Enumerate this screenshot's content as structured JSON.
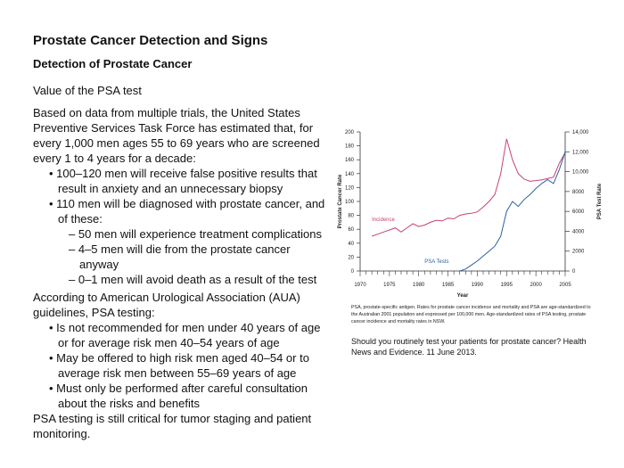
{
  "page": {
    "title": "Prostate Cancer Detection and Signs",
    "subtitle": "Detection of Prostate Cancer",
    "heading": "Value of the PSA test",
    "para1": "Based on data from multiple trials, the United States Preventive Services Task Force has estimated that, for every 1,000 men ages 55 to 69 years who are screened every 1 to 4 years for a decade:",
    "bullets1": [
      "100–120 men will receive false positive results that result in anxiety and an unnecessary biopsy",
      "110 men will be diagnosed with prostate cancer, and of these:"
    ],
    "subbullets": [
      "50 men will experience treatment complications",
      "4–5 men will die from the prostate cancer anyway",
      "0–1 men will avoid death as a result of the test"
    ],
    "para2": "According to American Urological Association (AUA) guidelines, PSA testing:",
    "bullets2": [
      "Is not recommended for men under 40 years of age or for average risk men 40–54 years of age",
      "May be offered to high risk men aged 40–54 or to average risk men between 55–69 years of age",
      "Must only be performed after careful consultation about the risks and benefits"
    ],
    "para3": "PSA testing is still critical for tumor staging and patient monitoring.",
    "caption": "PSA, prostate-specific antigen. Rates for prostate cancer incidence and mortality and PSA are age-standardized to the Australian 2001 population and expressed per 100,000 men. Age-standardized rates of PSA testing, prostate cancer incidence and mortality rates in NSW.",
    "reference": "Should you routinely test your patients for prostate cancer? Health News and Evidence. 11 June 2013."
  },
  "chart_data": {
    "type": "line",
    "xlabel": "Year",
    "ylabel_left": "Prostate Cancer Rate",
    "ylabel_right": "PSA Test Rate",
    "xlim": [
      1970,
      2005
    ],
    "ylim_left": [
      0,
      200
    ],
    "ylim_right": [
      0,
      14000
    ],
    "xticks": [
      "1970",
      "1975",
      "1980",
      "1985",
      "1990",
      "1995",
      "2000",
      "2005"
    ],
    "yticks_left": [
      "0",
      "20",
      "40",
      "60",
      "80",
      "100",
      "120",
      "140",
      "160",
      "180",
      "200"
    ],
    "yticks_right": [
      "0",
      "2000",
      "4000",
      "6000",
      "8000",
      "10,000",
      "12,000",
      "14,000"
    ],
    "series": [
      {
        "name": "Incidence",
        "axis": "left",
        "color": "#c8407a",
        "x": [
          1972,
          1973,
          1974,
          1975,
          1976,
          1977,
          1978,
          1979,
          1980,
          1981,
          1982,
          1983,
          1984,
          1985,
          1986,
          1987,
          1988,
          1989,
          1990,
          1991,
          1992,
          1993,
          1994,
          1995,
          1996,
          1997,
          1998,
          1999,
          2000,
          2001,
          2002,
          2003,
          2004,
          2005
        ],
        "y": [
          50,
          53,
          56,
          59,
          62,
          56,
          62,
          68,
          64,
          66,
          70,
          73,
          72,
          76,
          75,
          80,
          82,
          83,
          85,
          92,
          100,
          110,
          140,
          190,
          160,
          140,
          132,
          129,
          130,
          131,
          133,
          135,
          155,
          170
        ]
      },
      {
        "name": "PSA Tests",
        "axis": "right",
        "color": "#2d5fa3",
        "x": [
          1987,
          1988,
          1989,
          1990,
          1991,
          1992,
          1993,
          1994,
          1995,
          1996,
          1997,
          1998,
          1999,
          2000,
          2001,
          2002,
          2003,
          2004,
          2005
        ],
        "y": [
          0,
          200,
          600,
          1000,
          1500,
          2000,
          2500,
          3500,
          6000,
          7000,
          6500,
          7200,
          7700,
          8300,
          8800,
          9200,
          8800,
          10200,
          12000
        ]
      }
    ]
  }
}
